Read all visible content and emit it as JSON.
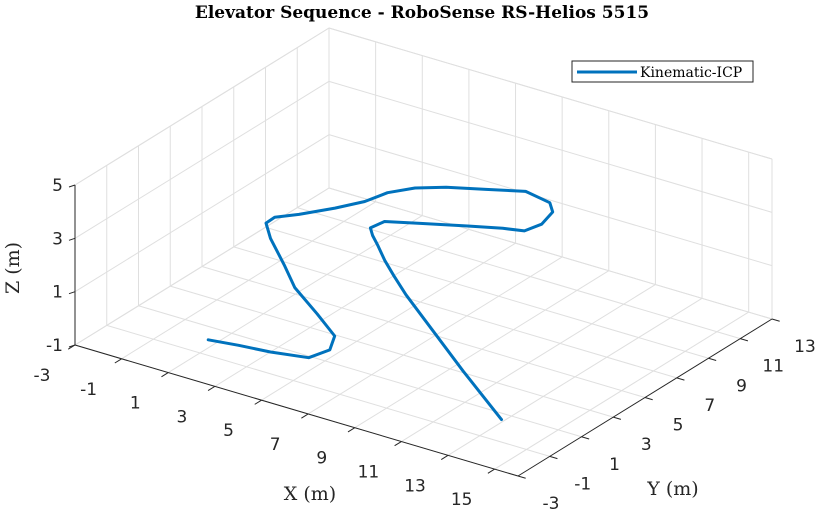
{
  "chart_data": {
    "type": "line3d",
    "title": "Elevator Sequence - RoboSense RS-Helios 5515",
    "xlabel": "X (m)",
    "ylabel": "Y (m)",
    "zlabel": "Z (m)",
    "xlim": [
      -3,
      16
    ],
    "ylim": [
      -3,
      13
    ],
    "zlim": [
      -1,
      5
    ],
    "xticks": [
      -3,
      -1,
      1,
      3,
      5,
      7,
      9,
      11,
      13,
      15
    ],
    "yticks": [
      -3,
      -1,
      1,
      3,
      5,
      7,
      9,
      11,
      13
    ],
    "zticks": [
      -1,
      1,
      3,
      5
    ],
    "grid": true,
    "legend_position": "top-right",
    "series": [
      {
        "name": "Kinematic-ICP",
        "color": "#0072bd",
        "points": [
          [
            14.0,
            -1.1,
            -0.1
          ],
          [
            12.5,
            -0.1,
            0.05
          ],
          [
            11.0,
            0.9,
            0.2
          ],
          [
            9.5,
            1.9,
            0.4
          ],
          [
            8.0,
            2.9,
            0.6
          ],
          [
            6.5,
            3.9,
            0.8
          ],
          [
            5.5,
            4.6,
            1.0
          ],
          [
            4.7,
            5.2,
            1.15
          ],
          [
            4.0,
            5.8,
            1.3
          ],
          [
            3.5,
            6.2,
            1.4
          ],
          [
            3.2,
            6.5,
            1.5
          ],
          [
            3.5,
            6.95,
            1.65
          ],
          [
            5.0,
            7.0,
            1.95
          ],
          [
            7.0,
            7.05,
            2.35
          ],
          [
            8.5,
            7.05,
            2.65
          ],
          [
            9.5,
            6.95,
            2.85
          ],
          [
            10.0,
            7.3,
            3.1
          ],
          [
            10.0,
            8.0,
            3.3
          ],
          [
            9.6,
            8.4,
            3.4
          ],
          [
            8.5,
            8.5,
            3.5
          ],
          [
            7.0,
            8.2,
            3.3
          ],
          [
            5.5,
            7.9,
            3.1
          ],
          [
            4.5,
            7.4,
            3.0
          ],
          [
            3.8,
            6.7,
            2.9
          ],
          [
            3.3,
            6.0,
            2.7
          ],
          [
            2.5,
            5.3,
            2.5
          ],
          [
            1.5,
            4.5,
            2.3
          ],
          [
            0.8,
            4.0,
            2.2
          ],
          [
            0.7,
            3.6,
            2.1
          ],
          [
            1.3,
            3.0,
            1.9
          ],
          [
            2.5,
            2.1,
            1.55
          ],
          [
            3.5,
            1.3,
            1.25
          ],
          [
            5.0,
            0.5,
            0.95
          ],
          [
            6.3,
            -0.3,
            0.75
          ],
          [
            6.5,
            -0.9,
            0.5
          ],
          [
            6.0,
            -1.5,
            0.3
          ],
          [
            4.5,
            -1.7,
            0.2
          ],
          [
            3.2,
            -1.8,
            0.15
          ],
          [
            2.0,
            -1.95,
            0.1
          ]
        ]
      }
    ]
  }
}
